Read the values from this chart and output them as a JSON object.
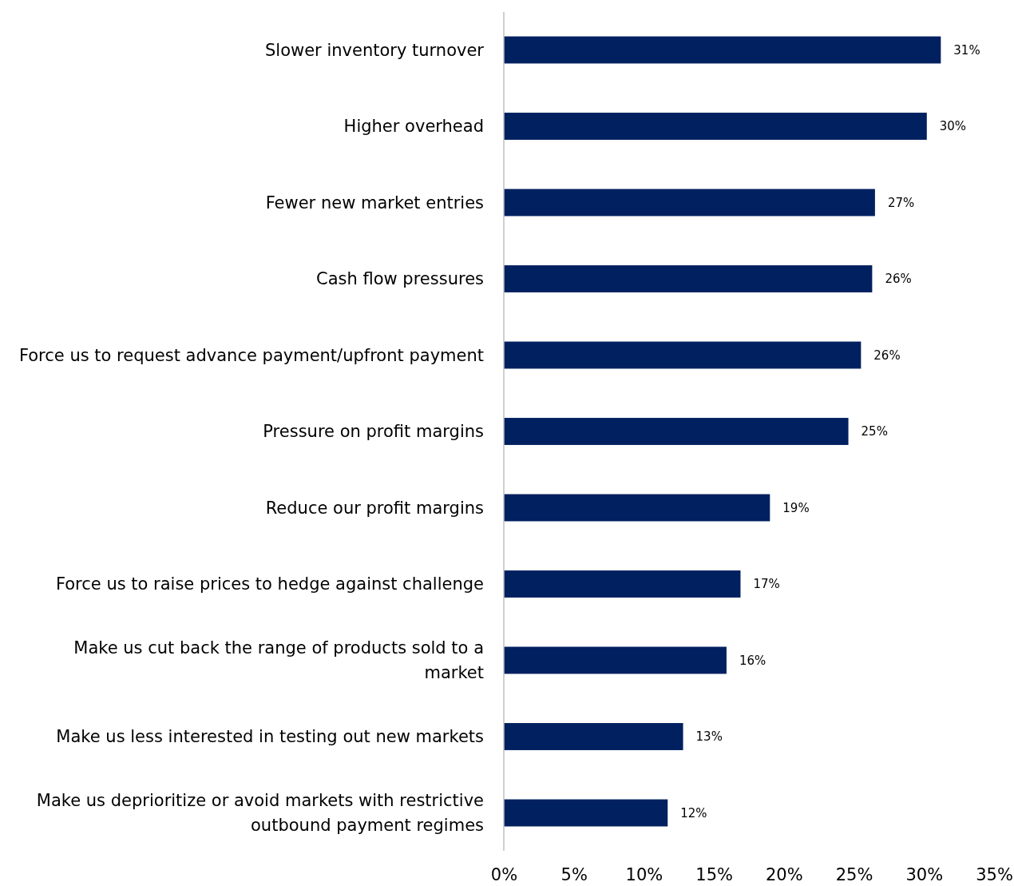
{
  "chart_data": {
    "type": "bar",
    "orientation": "horizontal",
    "categories": [
      "Slower inventory turnover",
      "Higher overhead",
      "Fewer new market entries",
      "Cash flow pressures",
      "Force us to request advance payment/upfront payment",
      "Pressure on profit margins",
      "Reduce our profit margins",
      "Force us to raise prices to hedge against challenge",
      "Make us cut back the range of products sold to a market",
      "Make us less interested in testing out new markets",
      "Make us deprioritize or avoid markets with restrictive outbound payment regimes"
    ],
    "values": [
      31.2,
      30.2,
      26.5,
      26.3,
      25.5,
      24.6,
      19.0,
      16.9,
      15.9,
      12.8,
      11.7
    ],
    "value_labels": [
      "31%",
      "30%",
      "27%",
      "26%",
      "26%",
      "25%",
      "19%",
      "17%",
      "16%",
      "13%",
      "12%"
    ],
    "color": "#002060",
    "xlim": [
      0,
      35
    ],
    "xticks": [
      {
        "value": 0,
        "label": "0%"
      },
      {
        "value": 5,
        "label": "5%"
      },
      {
        "value": 10,
        "label": "10%"
      },
      {
        "value": 15,
        "label": "15%"
      },
      {
        "value": 20,
        "label": "20%"
      },
      {
        "value": 25,
        "label": "25%"
      },
      {
        "value": 30,
        "label": "30%"
      },
      {
        "value": 35,
        "label": "35%"
      }
    ],
    "grid": false
  }
}
